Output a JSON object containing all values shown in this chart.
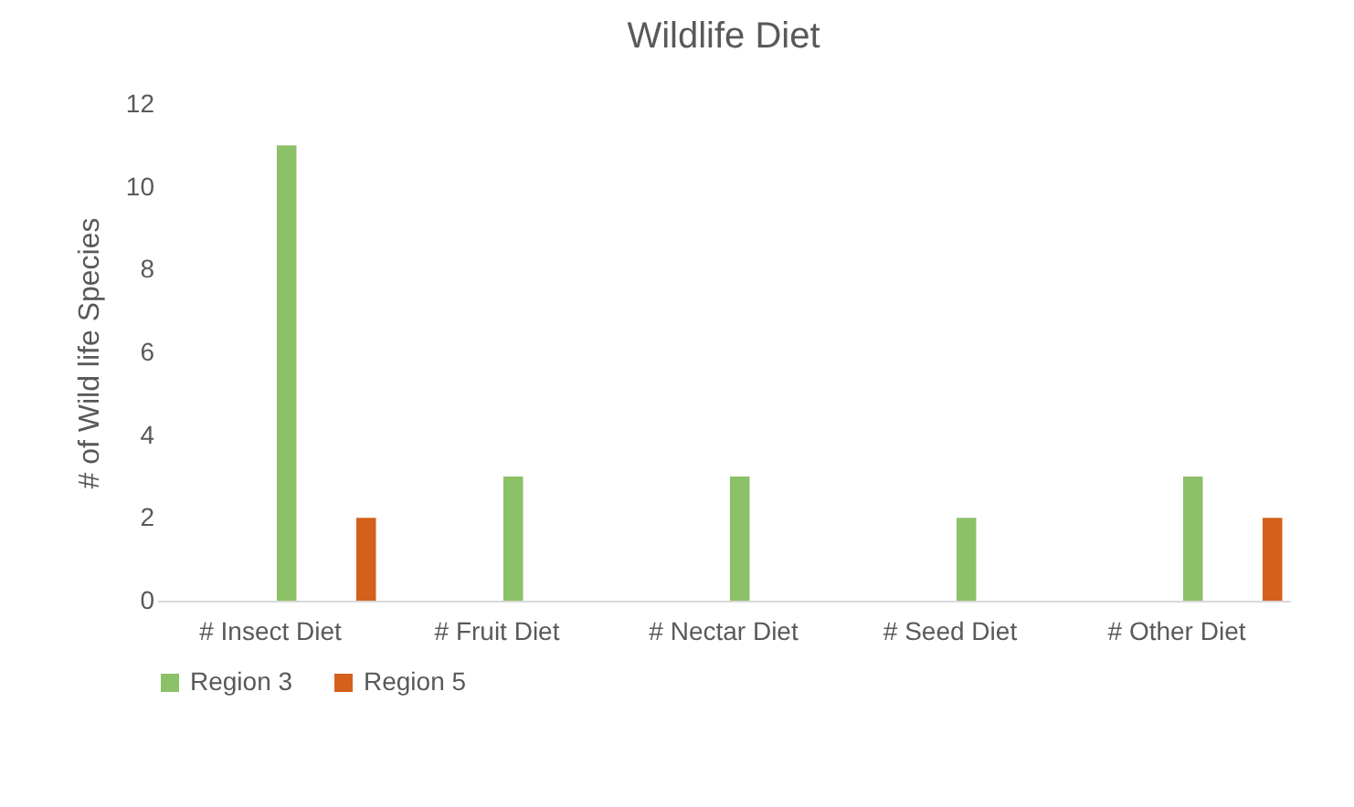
{
  "chart_data": {
    "type": "bar",
    "title": "Wildlife Diet",
    "ylabel": "# of Wild life Species",
    "categories": [
      "# Insect Diet",
      "# Fruit Diet",
      "# Nectar Diet",
      "# Seed Diet",
      "# Other Diet"
    ],
    "series": [
      {
        "name": "Region 3",
        "color": "#8cc168",
        "values": [
          11,
          3,
          3,
          2,
          3
        ]
      },
      {
        "name": "Region 5",
        "color": "#d5601c",
        "values": [
          2,
          0,
          0,
          0,
          2
        ]
      }
    ],
    "ylim": [
      0,
      12
    ],
    "yticks": [
      0,
      2,
      4,
      6,
      8,
      10,
      12
    ],
    "legend": "bottom"
  }
}
